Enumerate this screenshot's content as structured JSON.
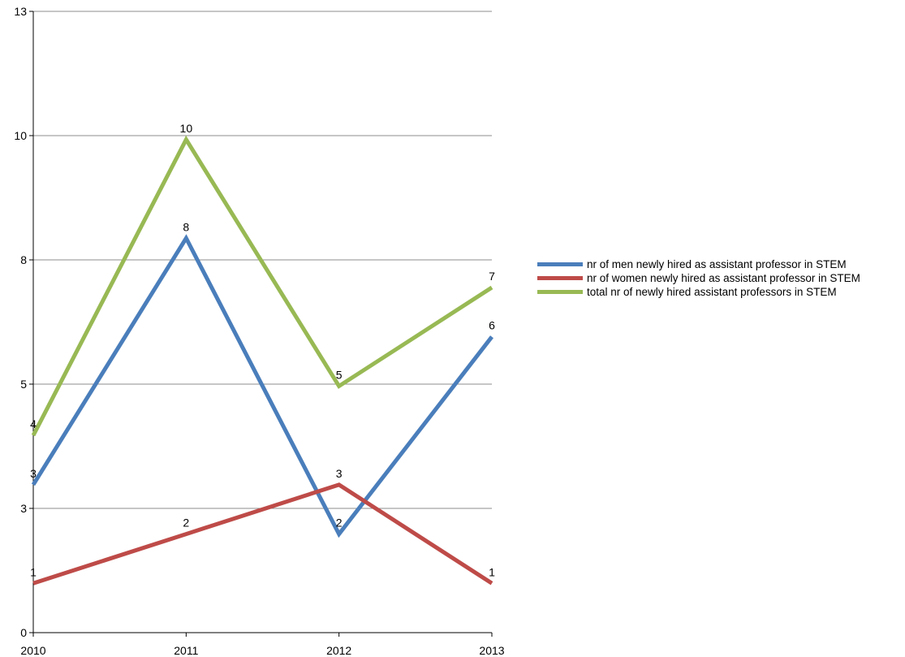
{
  "chart_data": {
    "type": "line",
    "categories": [
      "2010",
      "2011",
      "2012",
      "2013"
    ],
    "y_ticks": [
      0,
      3,
      5,
      8,
      10,
      13
    ],
    "ylim": [
      0,
      12.6
    ],
    "grid": true,
    "legend_position": "right",
    "series": [
      {
        "name": "nr of men newly hired as assistant professor in STEM",
        "values": [
          3,
          8,
          2,
          6
        ],
        "color": "#4a7ebb"
      },
      {
        "name": "nr of women newly hired as assistant professor in STEM",
        "values": [
          1,
          2,
          3,
          1
        ],
        "color": "#be4b48"
      },
      {
        "name": "total nr of newly hired assistant professors in STEM",
        "values": [
          4,
          10,
          5,
          7
        ],
        "color": "#98b954"
      }
    ]
  }
}
